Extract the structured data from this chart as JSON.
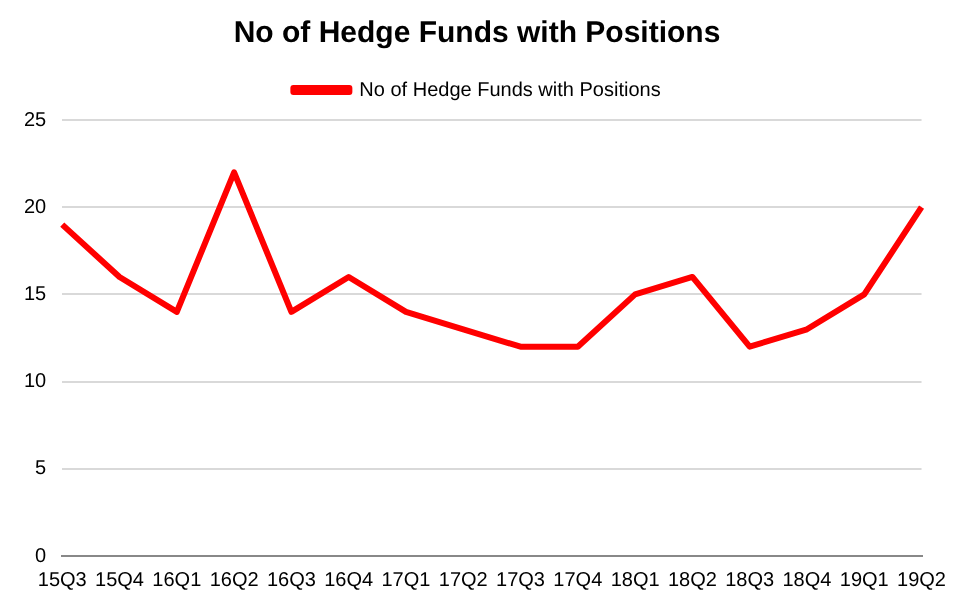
{
  "chart_data": {
    "type": "line",
    "title": "No of Hedge Funds with Positions",
    "categories": [
      "15Q3",
      "15Q4",
      "16Q1",
      "16Q2",
      "16Q3",
      "16Q4",
      "17Q1",
      "17Q2",
      "17Q3",
      "17Q4",
      "18Q1",
      "18Q2",
      "18Q3",
      "18Q4",
      "19Q1",
      "19Q2"
    ],
    "series": [
      {
        "name": "No of Hedge Funds with Positions",
        "color": "#ff0000",
        "values": [
          19,
          16,
          14,
          22,
          14,
          16,
          14,
          13,
          12,
          12,
          15,
          16,
          12,
          13,
          15,
          20
        ]
      }
    ],
    "ylim": [
      0,
      25
    ],
    "yticks": [
      0,
      5,
      10,
      15,
      20,
      25
    ],
    "grid": "y",
    "legend": "top",
    "marker": "none"
  }
}
